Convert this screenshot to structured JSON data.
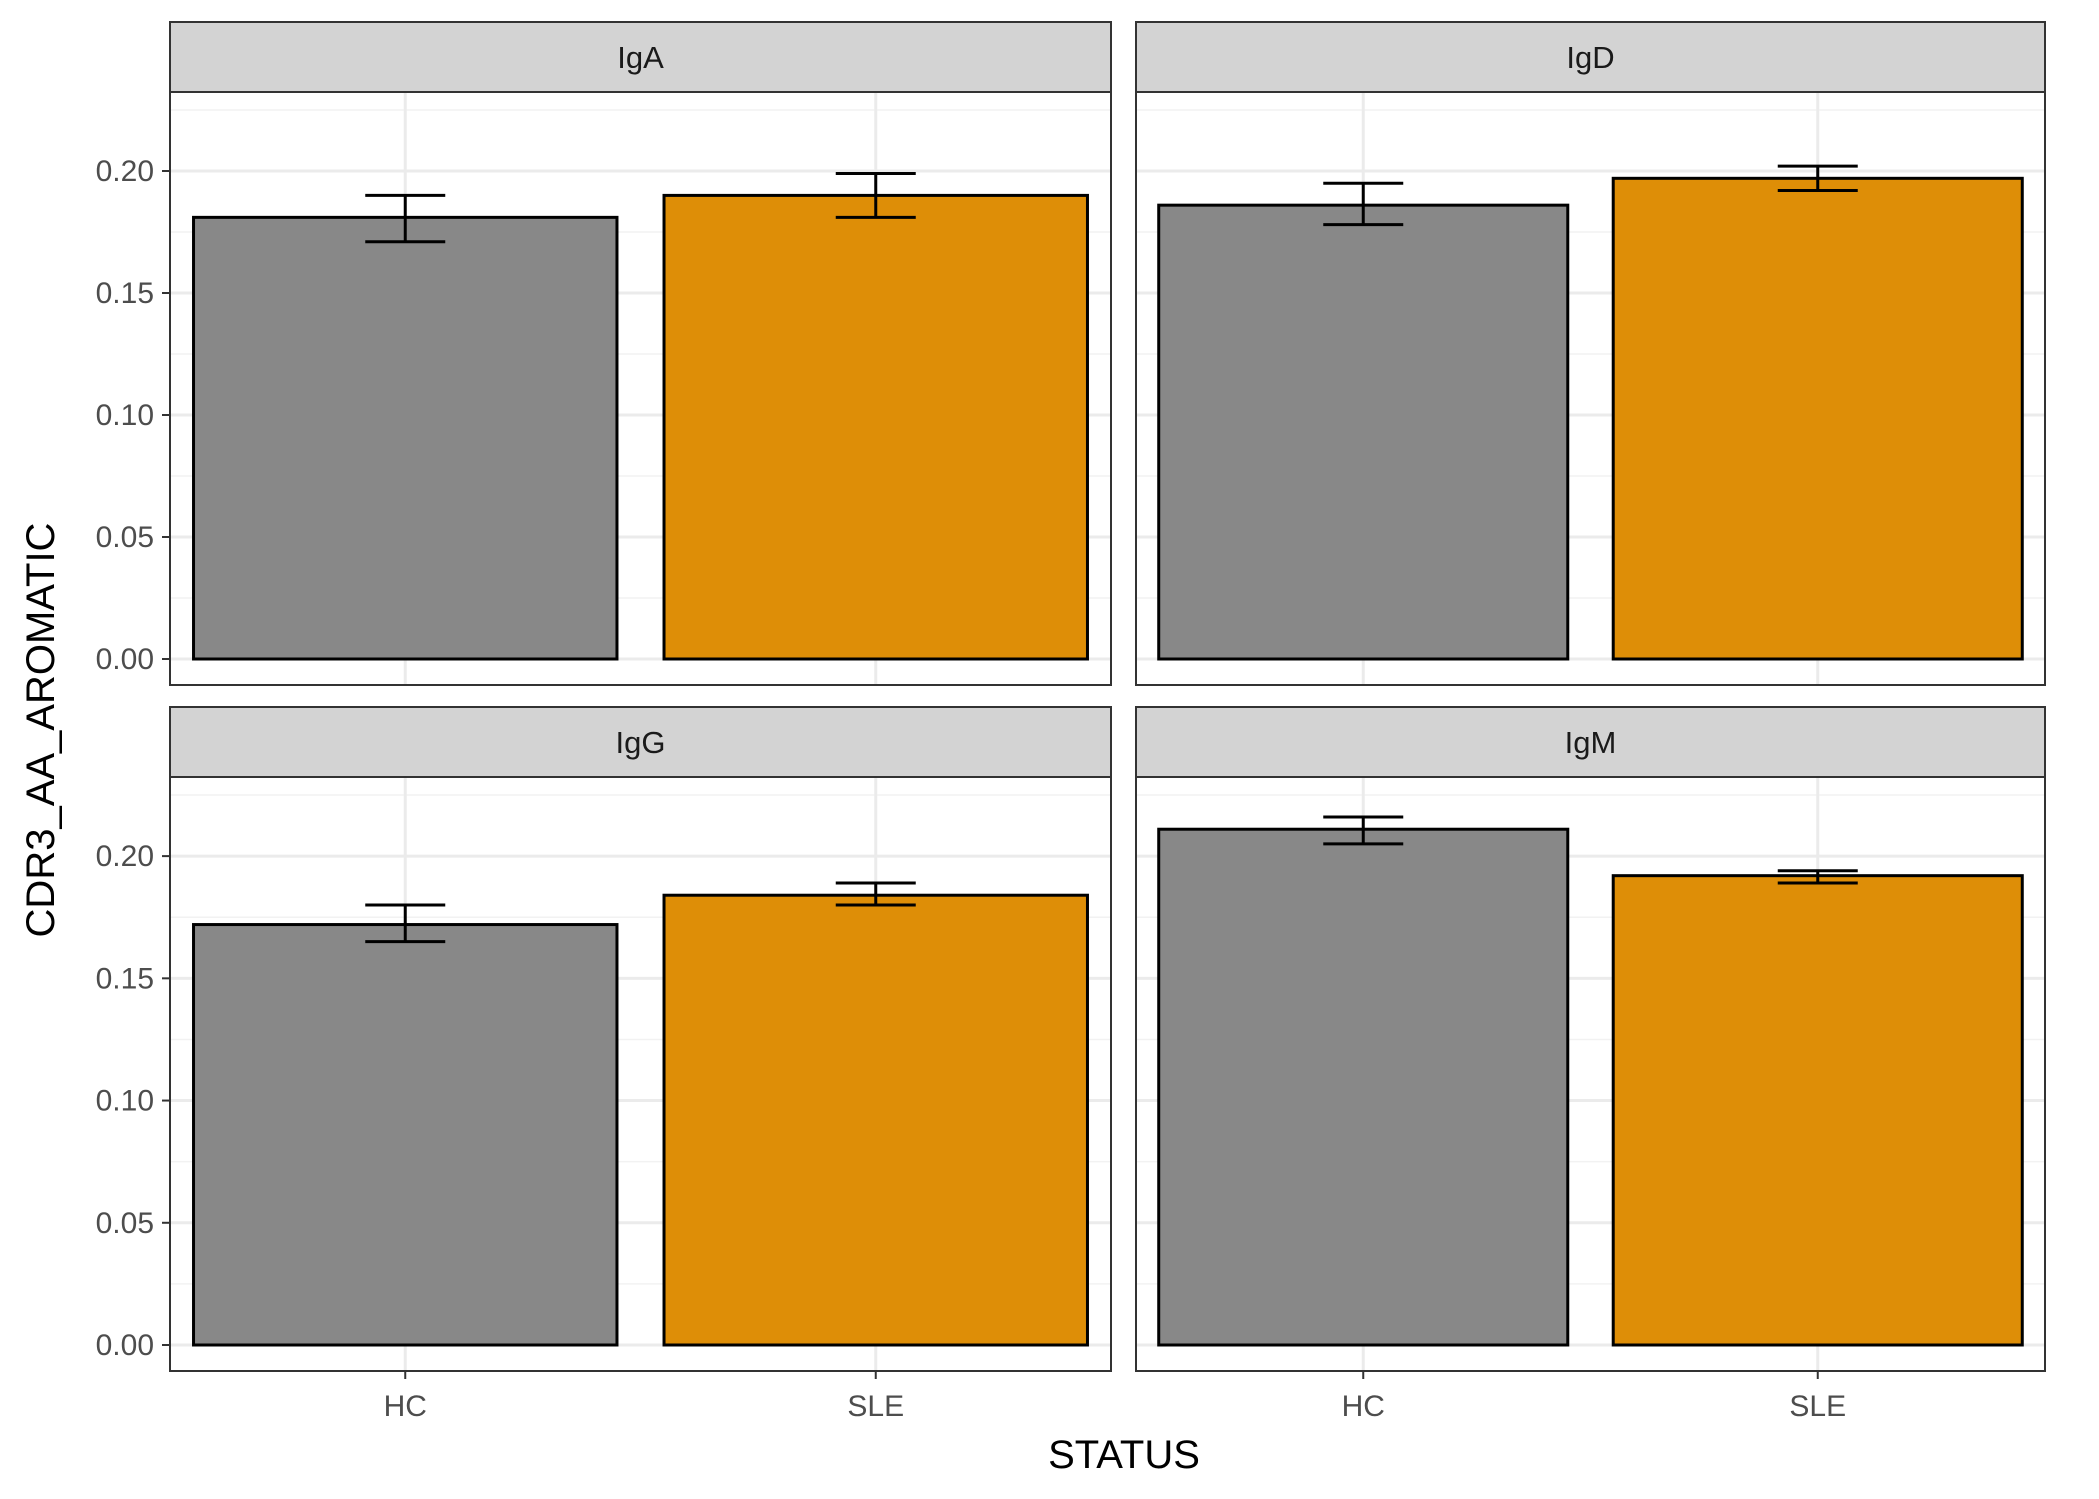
{
  "chart_data": {
    "type": "bar",
    "xlabel": "STATUS",
    "ylabel": "CDR3_AA_AROMATIC",
    "ylim": [
      0,
      0.225
    ],
    "yticks": [
      0.0,
      0.05,
      0.1,
      0.15,
      0.2
    ],
    "ytick_labels": [
      "0.00",
      "0.05",
      "0.10",
      "0.15",
      "0.20"
    ],
    "categories": [
      "HC",
      "SLE"
    ],
    "colors": {
      "HC": "#888888",
      "SLE": "#DE8E07"
    },
    "grid": true,
    "panels": [
      {
        "facet": "IgA",
        "values": [
          0.181,
          0.19
        ],
        "error": [
          [
            0.171,
            0.19
          ],
          [
            0.181,
            0.199
          ]
        ]
      },
      {
        "facet": "IgD",
        "values": [
          0.186,
          0.197
        ],
        "error": [
          [
            0.178,
            0.195
          ],
          [
            0.192,
            0.202
          ]
        ]
      },
      {
        "facet": "IgG",
        "values": [
          0.172,
          0.184
        ],
        "error": [
          [
            0.165,
            0.18
          ],
          [
            0.18,
            0.189
          ]
        ]
      },
      {
        "facet": "IgM",
        "values": [
          0.211,
          0.192
        ],
        "error": [
          [
            0.205,
            0.216
          ],
          [
            0.189,
            0.194
          ]
        ]
      }
    ]
  }
}
